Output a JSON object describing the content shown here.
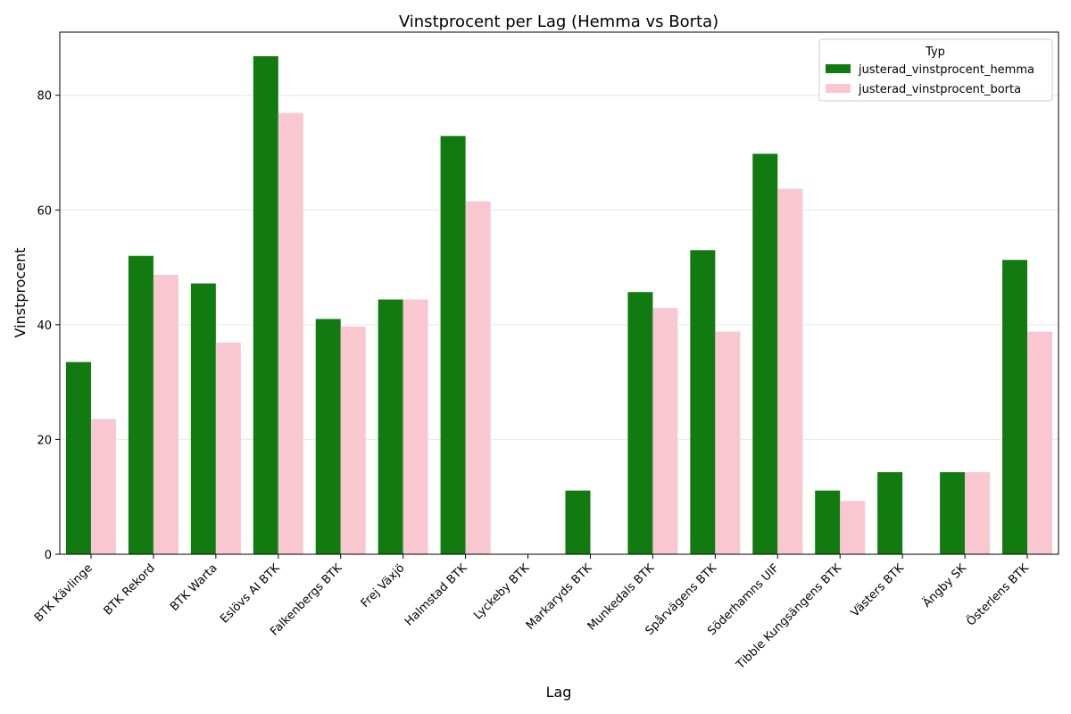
{
  "chart_data": {
    "type": "bar",
    "title": "Vinstprocent per Lag (Hemma vs Borta)",
    "xlabel": "Lag",
    "ylabel": "Vinstprocent",
    "ylim": [
      0,
      91
    ],
    "yticks": [
      0,
      20,
      40,
      60,
      80
    ],
    "grid": "y",
    "legend": {
      "title": "Typ",
      "placement": "top-right"
    },
    "categories": [
      "BTK Kävlinge",
      "BTK Rekord",
      "BTK Warta",
      "Eslövs AI BTK",
      "Falkenbergs BTK",
      "Frej Växjö",
      "Halmstad BTK",
      "Lyckeby BTK",
      "Markaryds BTK",
      "Munkedals BTK",
      "Spårvägens BTK",
      "Söderhamns UIF",
      "Tibble Kungsängens BTK",
      "Västers BTK",
      "Ängby SK",
      "Österlens BTK"
    ],
    "series": [
      {
        "name": "justerad_vinstprocent_hemma",
        "color": "#117a11",
        "values": [
          33.5,
          52.0,
          47.2,
          86.8,
          41.0,
          44.4,
          72.9,
          0.0,
          11.1,
          45.7,
          53.0,
          69.8,
          11.1,
          14.3,
          14.3,
          51.3
        ]
      },
      {
        "name": "justerad_vinstprocent_borta",
        "color": "#f8c7d0",
        "values": [
          23.6,
          48.7,
          36.9,
          76.9,
          39.7,
          44.4,
          61.5,
          0.0,
          0.0,
          42.9,
          38.8,
          63.7,
          9.3,
          0.0,
          14.3,
          38.8
        ]
      }
    ]
  }
}
